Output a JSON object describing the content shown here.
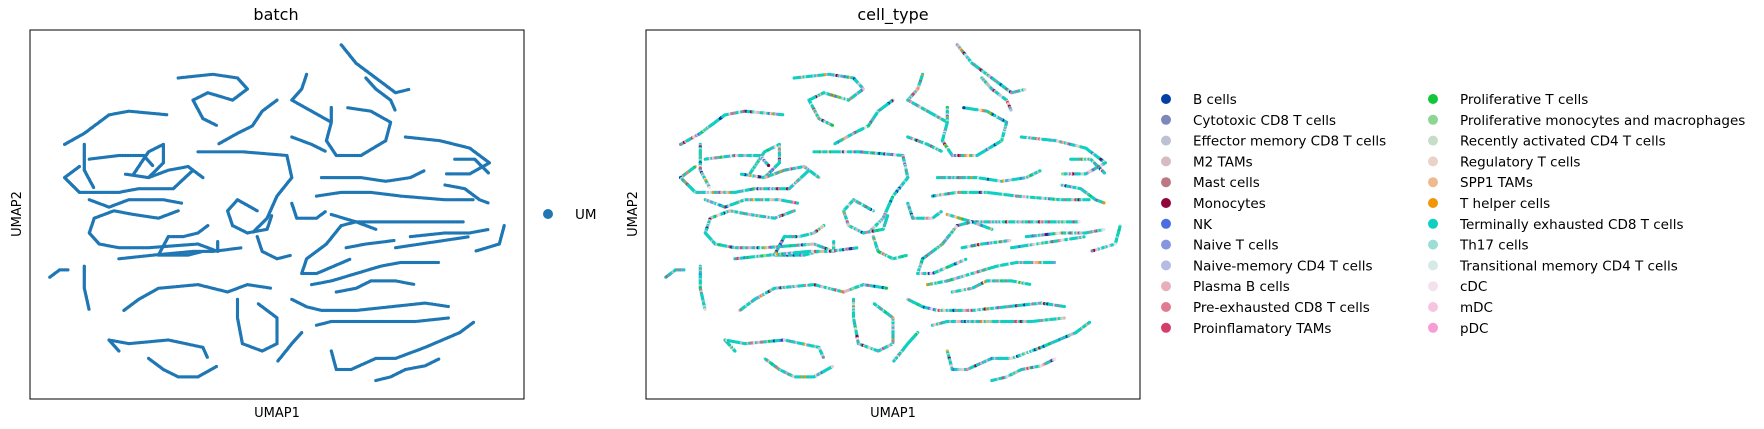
{
  "chart_data": [
    {
      "type": "scatter",
      "title": "batch",
      "xlabel": "UMAP1",
      "ylabel": "UMAP2",
      "ticks": "none",
      "grid": false,
      "legend_placement": "right",
      "legend_title": "",
      "categories": [
        {
          "name": "UM",
          "color": "#1f77b4"
        }
      ],
      "point_color": "#1f77b4",
      "point_source": "UMAP embedding; every cell belongs to batch UM"
    },
    {
      "type": "scatter",
      "title": "cell_type",
      "xlabel": "UMAP1",
      "ylabel": "UMAP2",
      "ticks": "none",
      "grid": false,
      "legend_placement": "right",
      "legend_columns": 2,
      "legend_title": "",
      "categories": [
        {
          "name": "B cells",
          "color": "#023fa5"
        },
        {
          "name": "Cytotoxic CD8 T cells",
          "color": "#7d87b9"
        },
        {
          "name": "Effector memory CD8 T cells",
          "color": "#bec1d4"
        },
        {
          "name": "M2 TAMs",
          "color": "#d6bcc0"
        },
        {
          "name": "Mast cells",
          "color": "#bb7784"
        },
        {
          "name": "Monocytes",
          "color": "#8e063b"
        },
        {
          "name": "NK",
          "color": "#4a6fe3"
        },
        {
          "name": "Naive T cells",
          "color": "#8595e1"
        },
        {
          "name": "Naive-memory CD4 T cells",
          "color": "#b5bbe3"
        },
        {
          "name": "Plasma B cells",
          "color": "#e6afb9"
        },
        {
          "name": "Pre-exhausted CD8 T cells",
          "color": "#e07b91"
        },
        {
          "name": "Proinflamatory TAMs",
          "color": "#d33f6a"
        },
        {
          "name": "Proliferative T cells",
          "color": "#11c638"
        },
        {
          "name": "Proliferative monocytes and macrophages",
          "color": "#8dd593"
        },
        {
          "name": "Recently activated CD4 T cells",
          "color": "#c6dec7"
        },
        {
          "name": "Regulatory T cells",
          "color": "#ead3c6"
        },
        {
          "name": "SPP1 TAMs",
          "color": "#f0b98d"
        },
        {
          "name": "T helper cells",
          "color": "#ef9708"
        },
        {
          "name": "Terminally exhausted CD8 T cells",
          "color": "#0fcfc0"
        },
        {
          "name": "Th17 cells",
          "color": "#9cded6"
        },
        {
          "name": "Transitional memory CD4 T cells",
          "color": "#d5eae7"
        },
        {
          "name": "cDC",
          "color": "#f3e1eb"
        },
        {
          "name": "mDC",
          "color": "#f6c4e1"
        },
        {
          "name": "pDC",
          "color": "#f79cd4"
        }
      ],
      "dominant_category": "Terminally exhausted CD8 T cells"
    }
  ]
}
